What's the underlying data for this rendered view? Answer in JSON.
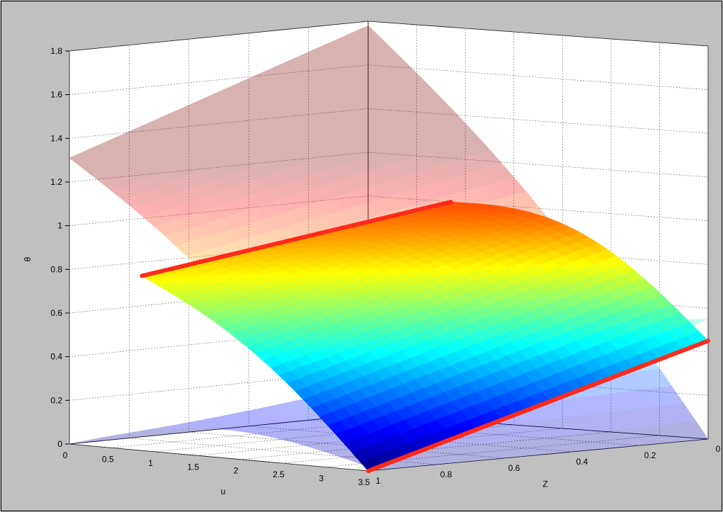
{
  "chart_data": {
    "type": "surface3d",
    "title": "",
    "xlabel": "u",
    "ylabel": "Z",
    "zlabel": "θ",
    "xlim": [
      0,
      3.5
    ],
    "ylim": [
      0,
      1
    ],
    "zlim": [
      0,
      1.8
    ],
    "grid": true,
    "x_ticks": [
      "0",
      "0.5",
      "1",
      "1.5",
      "2",
      "2.5",
      "3",
      "3.5"
    ],
    "y_ticks": [
      "0",
      "0.2",
      "0.4",
      "0.6",
      "0.8",
      "1"
    ],
    "z_ticks": [
      "0",
      "0.2",
      "0.4",
      "0.6",
      "0.8",
      "1",
      "1.2",
      "1.4",
      "1.6",
      "1.8"
    ],
    "surfaces": [
      {
        "name": "",
        "colormap": "jet",
        "opacity": 1.0,
        "u_range": [
          0.85,
          3.5
        ],
        "z_range": [
          0,
          1
        ],
        "theta_corners": {
          "u0_Z0": 1.0,
          "u0_Z1": 0.8,
          "u1_Z0": 0.45,
          "u1_Z1": 0.0
        }
      },
      {
        "name": "",
        "colormap": "jet",
        "opacity": 0.3,
        "u_range": [
          0,
          3.5
        ],
        "z_range": [
          0,
          1
        ],
        "theta_corners": {
          "u0_Z0": 1.78,
          "u0_Z1": 1.31,
          "u1_Z0": 0.0,
          "u1_Z1": 0.0
        }
      },
      {
        "name": "",
        "colormap": "jet",
        "opacity": 0.3,
        "u_range": [
          0,
          3.5
        ],
        "z_range": [
          0,
          1
        ],
        "theta_corners": {
          "u0_Z0": 0.0,
          "u0_Z1": 0.0,
          "u1_Z0": 0.55,
          "u1_Z1": 0.02
        }
      }
    ],
    "lines": [
      {
        "name": "",
        "color": "#ff2a1a",
        "points": [
          {
            "u": 0.85,
            "Z": 1,
            "theta": 0.8
          },
          {
            "u": 0.85,
            "Z": 0,
            "theta": 1.0
          }
        ]
      },
      {
        "name": "",
        "color": "#ff2a1a",
        "points": [
          {
            "u": 3.5,
            "Z": 1,
            "theta": 0.0
          },
          {
            "u": 3.5,
            "Z": 0,
            "theta": 0.45
          }
        ]
      }
    ]
  }
}
